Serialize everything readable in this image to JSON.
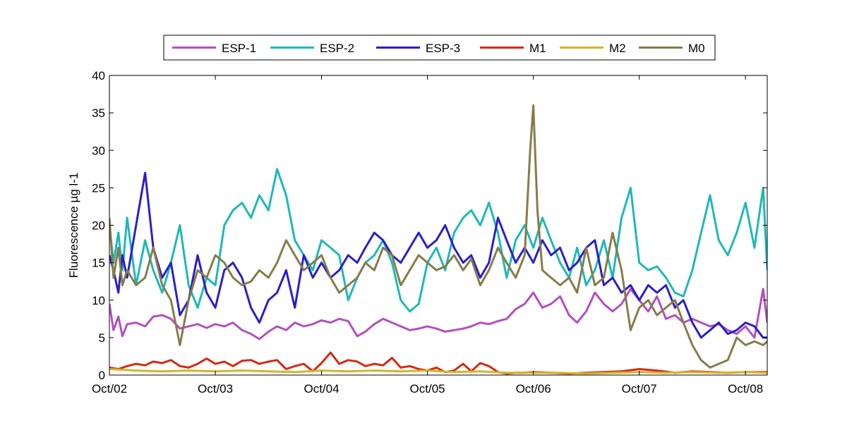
{
  "chart_data": {
    "type": "line",
    "title": "",
    "xlabel": "",
    "ylabel": "Fluorescence µg l-1",
    "ylim": [
      0,
      40
    ],
    "yticks": [
      "0",
      "5",
      "10",
      "15",
      "20",
      "25",
      "30",
      "35",
      "40"
    ],
    "xlim": [
      "2002-10-01",
      "2008-12-15"
    ],
    "xticks": [
      {
        "label": "Oct/02",
        "date": "2002-10-01"
      },
      {
        "label": "Oct/03",
        "date": "2003-10-01"
      },
      {
        "label": "Oct/04",
        "date": "2004-10-01"
      },
      {
        "label": "Oct/05",
        "date": "2005-10-01"
      },
      {
        "label": "Oct/06",
        "date": "2006-10-01"
      },
      {
        "label": "Oct/07",
        "date": "2007-10-01"
      },
      {
        "label": "Oct/08",
        "date": "2008-10-01"
      }
    ],
    "grid": false,
    "legend_position": "top-outside",
    "series": [
      {
        "name": "ESP-1",
        "color": "#b44fbf",
        "x": [
          "2002-10-01",
          "2002-10-15",
          "2002-11-01",
          "2002-11-15",
          "2002-12-01",
          "2003-01-01",
          "2003-02-01",
          "2003-03-01",
          "2003-04-01",
          "2003-05-01",
          "2003-06-01",
          "2003-07-01",
          "2003-08-01",
          "2003-09-01",
          "2003-10-01",
          "2003-11-01",
          "2003-12-01",
          "2004-01-01",
          "2004-02-01",
          "2004-03-01",
          "2004-04-01",
          "2004-05-01",
          "2004-06-01",
          "2004-07-01",
          "2004-08-01",
          "2004-09-01",
          "2004-10-01",
          "2004-11-01",
          "2004-12-01",
          "2005-01-01",
          "2005-02-01",
          "2005-03-01",
          "2005-04-01",
          "2005-05-01",
          "2005-06-01",
          "2005-07-01",
          "2005-08-01",
          "2005-09-01",
          "2005-10-01",
          "2005-11-01",
          "2005-12-01",
          "2006-01-01",
          "2006-02-01",
          "2006-03-01",
          "2006-04-01",
          "2006-05-01",
          "2006-06-01",
          "2006-07-01",
          "2006-08-01",
          "2006-09-01",
          "2006-10-01",
          "2006-11-01",
          "2006-12-01",
          "2007-01-01",
          "2007-02-01",
          "2007-03-01",
          "2007-04-01",
          "2007-05-01",
          "2007-06-01",
          "2007-07-01",
          "2007-08-01",
          "2007-09-01",
          "2007-10-01",
          "2007-11-01",
          "2007-12-01",
          "2008-01-01",
          "2008-02-01",
          "2008-03-01",
          "2008-04-01",
          "2008-05-01",
          "2008-06-01",
          "2008-07-01",
          "2008-08-01",
          "2008-09-01",
          "2008-10-01",
          "2008-11-01",
          "2008-12-01",
          "2008-12-15"
        ],
        "values": [
          9.5,
          6.0,
          7.8,
          5.2,
          6.8,
          7.0,
          6.5,
          7.8,
          8.0,
          7.5,
          6.2,
          6.5,
          6.8,
          6.3,
          6.8,
          6.5,
          7.0,
          6.0,
          5.5,
          4.8,
          5.8,
          6.5,
          6.0,
          7.0,
          6.5,
          6.8,
          7.3,
          7.0,
          7.5,
          7.2,
          5.2,
          5.8,
          6.8,
          7.5,
          7.0,
          6.5,
          6.0,
          6.2,
          6.5,
          6.2,
          5.8,
          6.0,
          6.2,
          6.5,
          7.0,
          6.8,
          7.2,
          7.5,
          8.8,
          9.5,
          11.0,
          9.0,
          9.5,
          10.5,
          8.0,
          7.0,
          8.5,
          11.0,
          9.5,
          8.5,
          9.5,
          11.5,
          10.0,
          8.5,
          10.5,
          7.5,
          8.0,
          7.0,
          7.5,
          7.0,
          6.5,
          6.8,
          6.0,
          5.5,
          6.5,
          5.0,
          11.5,
          7.0
        ]
      },
      {
        "name": "ESP-2",
        "color": "#1fb8b8",
        "x": [
          "2002-10-01",
          "2002-10-15",
          "2002-11-01",
          "2002-11-15",
          "2002-12-01",
          "2003-01-01",
          "2003-02-01",
          "2003-03-01",
          "2003-04-01",
          "2003-05-01",
          "2003-06-01",
          "2003-07-01",
          "2003-08-01",
          "2003-09-01",
          "2003-10-01",
          "2003-11-01",
          "2003-12-01",
          "2004-01-01",
          "2004-02-01",
          "2004-03-01",
          "2004-04-01",
          "2004-05-01",
          "2004-06-01",
          "2004-07-01",
          "2004-08-01",
          "2004-09-01",
          "2004-10-01",
          "2004-11-01",
          "2004-12-01",
          "2005-01-01",
          "2005-02-01",
          "2005-03-01",
          "2005-04-01",
          "2005-05-01",
          "2005-06-01",
          "2005-07-01",
          "2005-08-01",
          "2005-09-01",
          "2005-10-01",
          "2005-11-01",
          "2005-12-01",
          "2006-01-01",
          "2006-02-01",
          "2006-03-01",
          "2006-04-01",
          "2006-05-01",
          "2006-06-01",
          "2006-07-01",
          "2006-08-01",
          "2006-09-01",
          "2006-10-01",
          "2006-11-01",
          "2006-12-01",
          "2007-01-01",
          "2007-02-01",
          "2007-03-01",
          "2007-04-01",
          "2007-05-01",
          "2007-06-01",
          "2007-07-01",
          "2007-08-01",
          "2007-09-01",
          "2007-10-01",
          "2007-11-01",
          "2007-12-01",
          "2008-01-01",
          "2008-02-01",
          "2008-03-01",
          "2008-04-01",
          "2008-05-01",
          "2008-06-01",
          "2008-07-01",
          "2008-08-01",
          "2008-09-01",
          "2008-10-01",
          "2008-11-01",
          "2008-12-01",
          "2008-12-15"
        ],
        "values": [
          20.0,
          15.0,
          19.0,
          14.0,
          21.0,
          12.0,
          18.0,
          14.0,
          11.0,
          15.0,
          20.0,
          12.0,
          9.0,
          13.0,
          12.0,
          20.0,
          22.0,
          23.0,
          21.0,
          24.0,
          22.0,
          27.5,
          24.0,
          18.0,
          16.0,
          14.0,
          18.0,
          17.0,
          16.0,
          10.0,
          13.0,
          15.0,
          16.0,
          18.0,
          15.0,
          10.0,
          8.5,
          9.5,
          15.0,
          17.0,
          14.0,
          19.0,
          21.0,
          22.0,
          20.0,
          23.0,
          19.0,
          13.0,
          18.0,
          20.0,
          17.0,
          21.0,
          18.0,
          15.0,
          13.0,
          17.0,
          12.0,
          14.0,
          18.0,
          13.0,
          21.0,
          25.0,
          15.0,
          14.0,
          14.5,
          13.0,
          11.0,
          10.5,
          14.0,
          19.0,
          24.0,
          18.0,
          16.0,
          19.0,
          23.0,
          17.0,
          25.0,
          14.0
        ]
      },
      {
        "name": "ESP-3",
        "color": "#2a1fc9",
        "x": [
          "2002-10-01",
          "2002-10-15",
          "2002-11-01",
          "2002-11-15",
          "2002-12-01",
          "2003-01-01",
          "2003-02-01",
          "2003-03-01",
          "2003-04-01",
          "2003-05-01",
          "2003-06-01",
          "2003-07-01",
          "2003-08-01",
          "2003-09-01",
          "2003-10-01",
          "2003-11-01",
          "2003-12-01",
          "2004-01-01",
          "2004-02-01",
          "2004-03-01",
          "2004-04-01",
          "2004-05-01",
          "2004-06-01",
          "2004-07-01",
          "2004-08-01",
          "2004-09-01",
          "2004-10-01",
          "2004-11-01",
          "2004-12-01",
          "2005-01-01",
          "2005-02-01",
          "2005-03-01",
          "2005-04-01",
          "2005-05-01",
          "2005-06-01",
          "2005-07-01",
          "2005-08-01",
          "2005-09-01",
          "2005-10-01",
          "2005-11-01",
          "2005-12-01",
          "2006-01-01",
          "2006-02-01",
          "2006-03-01",
          "2006-04-01",
          "2006-05-01",
          "2006-06-01",
          "2006-07-01",
          "2006-08-01",
          "2006-09-01",
          "2006-10-01",
          "2006-11-01",
          "2006-12-01",
          "2007-01-01",
          "2007-02-01",
          "2007-03-01",
          "2007-04-01",
          "2007-05-01",
          "2007-06-01",
          "2007-07-01",
          "2007-08-01",
          "2007-09-01",
          "2007-10-01",
          "2007-11-01",
          "2007-12-01",
          "2008-01-01",
          "2008-02-01",
          "2008-03-01",
          "2008-04-01",
          "2008-05-01",
          "2008-06-01",
          "2008-07-01",
          "2008-08-01",
          "2008-09-01",
          "2008-10-01",
          "2008-11-01",
          "2008-12-01",
          "2008-12-15"
        ],
        "values": [
          16.0,
          14.0,
          11.0,
          16.0,
          13.0,
          20.0,
          27.0,
          17.0,
          13.0,
          15.0,
          8.0,
          10.0,
          16.0,
          11.0,
          9.0,
          14.0,
          15.0,
          13.0,
          9.0,
          7.0,
          10.0,
          11.0,
          14.0,
          9.0,
          16.0,
          13.0,
          15.0,
          13.0,
          14.0,
          16.0,
          15.0,
          17.0,
          19.0,
          18.0,
          16.0,
          15.0,
          17.0,
          19.0,
          17.0,
          18.0,
          20.0,
          17.0,
          15.0,
          16.0,
          13.0,
          15.0,
          21.0,
          18.0,
          15.0,
          17.0,
          15.0,
          18.0,
          16.0,
          17.0,
          14.0,
          15.0,
          17.0,
          18.0,
          12.0,
          13.0,
          11.0,
          12.0,
          10.0,
          12.0,
          11.0,
          12.0,
          9.0,
          10.0,
          7.0,
          5.0,
          6.0,
          7.0,
          5.5,
          6.0,
          7.0,
          6.5,
          5.0,
          5.0
        ]
      },
      {
        "name": "M1",
        "color": "#d42a14",
        "x": [
          "2002-10-01",
          "2002-11-01",
          "2002-12-01",
          "2003-01-01",
          "2003-02-01",
          "2003-03-01",
          "2003-04-01",
          "2003-05-01",
          "2003-06-01",
          "2003-07-01",
          "2003-08-01",
          "2003-09-01",
          "2003-10-01",
          "2003-11-01",
          "2003-12-01",
          "2004-01-01",
          "2004-02-01",
          "2004-03-01",
          "2004-04-01",
          "2004-05-01",
          "2004-06-01",
          "2004-07-01",
          "2004-08-01",
          "2004-09-01",
          "2004-10-01",
          "2004-11-01",
          "2004-12-01",
          "2005-01-01",
          "2005-02-01",
          "2005-03-01",
          "2005-04-01",
          "2005-05-01",
          "2005-06-01",
          "2005-07-01",
          "2005-08-01",
          "2005-09-01",
          "2005-10-01",
          "2005-11-01",
          "2005-12-01",
          "2006-01-01",
          "2006-02-01",
          "2006-03-01",
          "2006-04-01",
          "2006-05-01",
          "2006-06-01",
          "2006-07-01",
          "2006-08-01",
          "2006-09-01",
          "2006-10-01",
          "2006-12-01",
          "2007-02-01",
          "2007-04-01",
          "2007-06-01",
          "2007-08-01",
          "2007-10-01",
          "2007-12-01",
          "2008-02-01",
          "2008-04-01",
          "2008-06-01",
          "2008-08-01",
          "2008-10-01",
          "2008-12-15"
        ],
        "values": [
          1.0,
          0.8,
          1.2,
          1.5,
          1.3,
          1.8,
          1.6,
          2.0,
          1.2,
          1.0,
          1.5,
          2.2,
          1.5,
          1.8,
          1.2,
          1.9,
          2.0,
          1.5,
          1.8,
          2.0,
          0.8,
          1.2,
          1.5,
          0.5,
          1.6,
          3.0,
          1.5,
          2.0,
          1.8,
          1.2,
          1.5,
          1.3,
          2.3,
          1.0,
          1.2,
          0.8,
          0.6,
          1.0,
          0.4,
          0.6,
          1.5,
          0.5,
          1.6,
          1.2,
          0.4,
          0.2,
          0.3,
          0.3,
          0.4,
          0.3,
          0.2,
          0.3,
          0.4,
          0.5,
          0.8,
          0.6,
          0.3,
          0.5,
          0.4,
          0.3,
          0.4,
          0.4
        ]
      },
      {
        "name": "M2",
        "color": "#d6b42a",
        "x": [
          "2002-10-01",
          "2003-01-01",
          "2003-04-01",
          "2003-07-01",
          "2003-10-01",
          "2004-01-01",
          "2004-04-01",
          "2004-07-01",
          "2004-10-01",
          "2005-01-01",
          "2005-04-01",
          "2005-07-01",
          "2005-10-01",
          "2006-01-01",
          "2006-04-01",
          "2006-07-01",
          "2006-10-01",
          "2007-01-01",
          "2007-04-01",
          "2007-07-01",
          "2007-10-01",
          "2008-01-01",
          "2008-04-01",
          "2008-07-01",
          "2008-10-01",
          "2008-12-15"
        ],
        "values": [
          0.8,
          0.6,
          0.5,
          0.6,
          0.5,
          0.6,
          0.5,
          0.4,
          0.6,
          0.5,
          0.6,
          0.5,
          0.6,
          0.4,
          0.5,
          0.3,
          0.3,
          0.3,
          0.2,
          0.3,
          0.4,
          0.3,
          0.4,
          0.3,
          0.4,
          0.3
        ]
      },
      {
        "name": "M0",
        "color": "#867c4a",
        "x": [
          "2002-10-01",
          "2002-10-15",
          "2002-11-01",
          "2002-11-15",
          "2002-12-01",
          "2003-01-01",
          "2003-02-01",
          "2003-03-01",
          "2003-04-01",
          "2003-05-01",
          "2003-06-01",
          "2003-07-01",
          "2003-08-01",
          "2003-09-01",
          "2003-10-01",
          "2003-11-01",
          "2003-12-01",
          "2004-01-01",
          "2004-02-01",
          "2004-03-01",
          "2004-04-01",
          "2004-05-01",
          "2004-06-01",
          "2004-07-01",
          "2004-08-01",
          "2004-09-01",
          "2004-10-01",
          "2004-11-01",
          "2004-12-01",
          "2005-01-01",
          "2005-02-01",
          "2005-03-01",
          "2005-04-01",
          "2005-05-01",
          "2005-06-01",
          "2005-07-01",
          "2005-08-01",
          "2005-09-01",
          "2005-10-01",
          "2005-11-01",
          "2005-12-01",
          "2006-01-01",
          "2006-02-01",
          "2006-03-01",
          "2006-04-01",
          "2006-05-01",
          "2006-06-01",
          "2006-07-01",
          "2006-08-01",
          "2006-09-01",
          "2006-09-20",
          "2006-10-01",
          "2006-10-15",
          "2006-11-01",
          "2006-12-01",
          "2007-01-01",
          "2007-02-01",
          "2007-03-01",
          "2007-04-01",
          "2007-05-01",
          "2007-06-01",
          "2007-07-01",
          "2007-08-01",
          "2007-09-01",
          "2007-10-01",
          "2007-11-01",
          "2007-12-01",
          "2008-01-01",
          "2008-02-01",
          "2008-03-01",
          "2008-04-01",
          "2008-05-01",
          "2008-06-01",
          "2008-07-01",
          "2008-08-01",
          "2008-09-01",
          "2008-10-01",
          "2008-11-01",
          "2008-12-01",
          "2008-12-15"
        ],
        "values": [
          21.0,
          13.0,
          17.0,
          12.0,
          14.0,
          12.0,
          13.0,
          17.0,
          12.0,
          10.0,
          4.0,
          10.0,
          14.0,
          13.0,
          16.0,
          15.0,
          13.0,
          12.0,
          12.5,
          14.0,
          13.0,
          15.0,
          18.0,
          16.0,
          14.0,
          15.0,
          16.0,
          13.0,
          11.0,
          12.0,
          13.0,
          15.0,
          14.0,
          17.0,
          16.0,
          12.0,
          14.0,
          16.0,
          15.0,
          14.0,
          14.5,
          16.0,
          14.0,
          15.5,
          12.0,
          14.0,
          17.0,
          15.0,
          13.0,
          16.0,
          30.0,
          36.0,
          22.0,
          14.0,
          13.0,
          12.0,
          13.0,
          11.0,
          17.0,
          12.0,
          13.0,
          19.0,
          14.0,
          6.0,
          9.0,
          10.0,
          8.0,
          9.0,
          10.0,
          7.0,
          4.0,
          2.0,
          1.0,
          1.5,
          2.0,
          5.0,
          4.0,
          4.5,
          4.0,
          4.5
        ]
      }
    ]
  }
}
